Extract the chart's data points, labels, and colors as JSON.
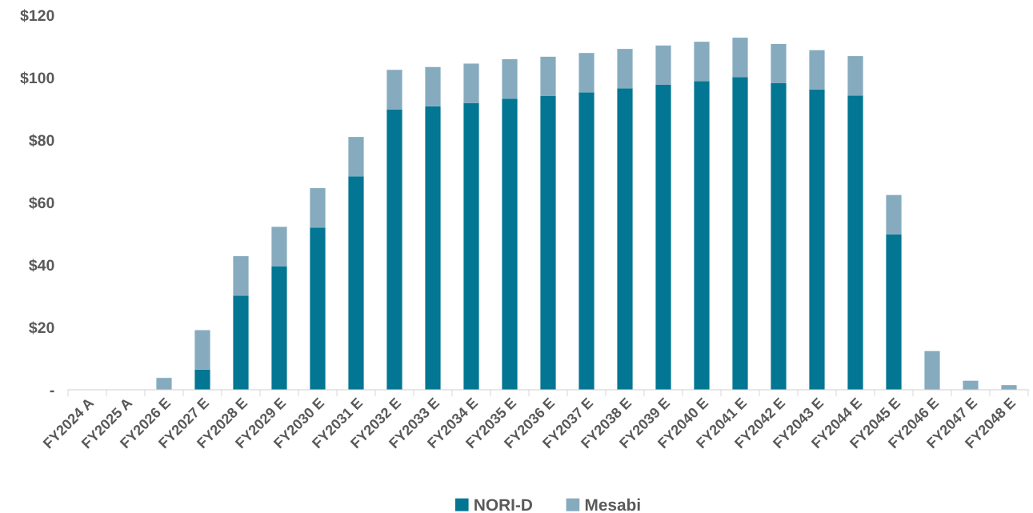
{
  "chart_data": {
    "type": "bar",
    "stacked": true,
    "categories": [
      "FY2024 A",
      "FY2025 A",
      "FY2026 E",
      "FY2027 E",
      "FY2028 E",
      "FY2029 E",
      "FY2030 E",
      "FY2031 E",
      "FY2032 E",
      "FY2033 E",
      "FY2034 E",
      "FY2035 E",
      "FY2036 E",
      "FY2037 E",
      "FY2038 E",
      "FY2039 E",
      "FY2040 E",
      "FY2041 E",
      "FY2042 E",
      "FY2043 E",
      "FY2044 E",
      "FY2045 E",
      "FY2046 E",
      "FY2047 E",
      "FY2048 E"
    ],
    "series": [
      {
        "name": "NORI-D",
        "color": "#027693",
        "values": [
          0,
          0,
          0,
          6.5,
          30.2,
          39.6,
          52.0,
          68.4,
          89.9,
          90.8,
          91.9,
          93.3,
          94.1,
          95.3,
          96.6,
          97.7,
          98.9,
          100.2,
          98.2,
          96.2,
          94.3,
          49.8,
          0,
          0,
          0
        ]
      },
      {
        "name": "Mesabi",
        "color": "#86abbf",
        "values": [
          0,
          0,
          3.8,
          12.6,
          12.6,
          12.6,
          12.6,
          12.6,
          12.6,
          12.6,
          12.6,
          12.6,
          12.6,
          12.6,
          12.6,
          12.6,
          12.6,
          12.6,
          12.6,
          12.6,
          12.6,
          12.6,
          12.4,
          2.9,
          1.5
        ]
      }
    ],
    "ylim": [
      0,
      120
    ],
    "yticks": [
      {
        "value": 0,
        "label": "-"
      },
      {
        "value": 20,
        "label": "$20"
      },
      {
        "value": 40,
        "label": "$40"
      },
      {
        "value": 60,
        "label": "$60"
      },
      {
        "value": 80,
        "label": "$80"
      },
      {
        "value": 100,
        "label": "$100"
      },
      {
        "value": 120,
        "label": "$120"
      }
    ],
    "grid": false,
    "legend": "bottom"
  }
}
